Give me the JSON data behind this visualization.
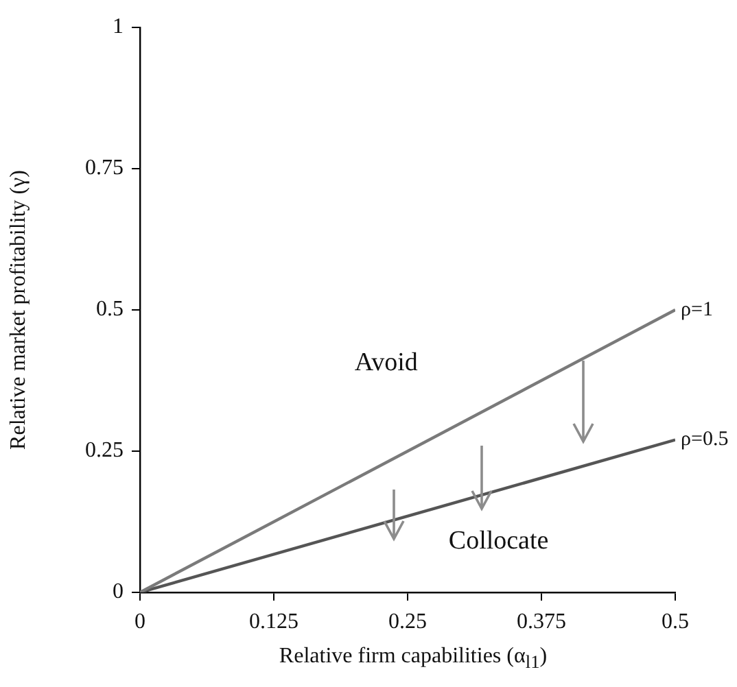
{
  "chart_data": {
    "type": "line",
    "xlabel": "Relative firm capabilities (α$_{l1}$)",
    "ylabel": "Relative market profitability (γ)",
    "x": [
      0,
      0.5
    ],
    "series": [
      {
        "name": "ρ=1",
        "color": "#7a7a7a",
        "values": [
          0,
          0.5
        ]
      },
      {
        "name": "ρ=0.5",
        "color": "#555555",
        "values": [
          0,
          0.27
        ]
      }
    ],
    "xlim": [
      0,
      0.5
    ],
    "xticks": [
      0,
      0.125,
      0.25,
      0.375,
      0.5
    ],
    "ylim": [
      0,
      1
    ],
    "yticks": [
      0,
      0.25,
      0.5,
      0.75,
      1
    ],
    "annotations": [
      "Avoid",
      "Collocate"
    ],
    "grid": false,
    "legend": false,
    "marker": "none",
    "line_style": "solid"
  }
}
